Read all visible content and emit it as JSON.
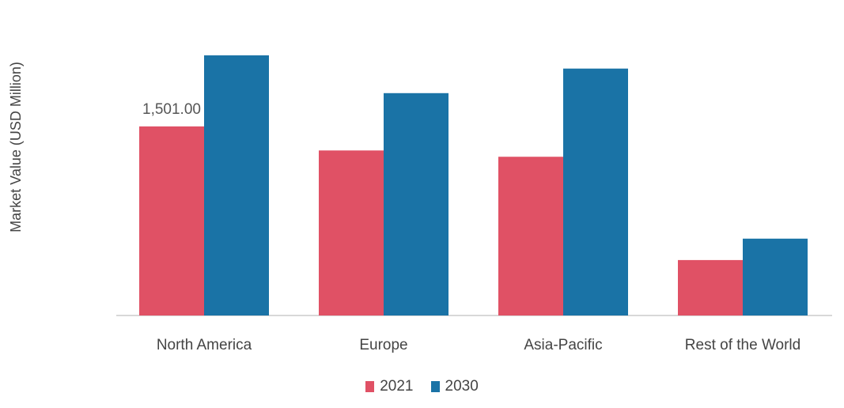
{
  "chart_data": {
    "type": "bar",
    "ylabel": "Market Value (USD Million)",
    "xlabel": "",
    "categories": [
      "North America",
      "Europe",
      "Asia-Pacific",
      "Rest of the World"
    ],
    "series": [
      {
        "name": "2021",
        "color": "#e05165",
        "values": [
          1501.0,
          1310,
          1260,
          440
        ]
      },
      {
        "name": "2030",
        "color": "#1a73a6",
        "values": [
          2065,
          1765,
          1960,
          610
        ]
      }
    ],
    "data_labels": [
      {
        "series": 0,
        "index": 0,
        "text": "1,501.00"
      }
    ],
    "ylim": [
      0,
      2065
    ],
    "grid": false,
    "legend_position": "bottom"
  }
}
